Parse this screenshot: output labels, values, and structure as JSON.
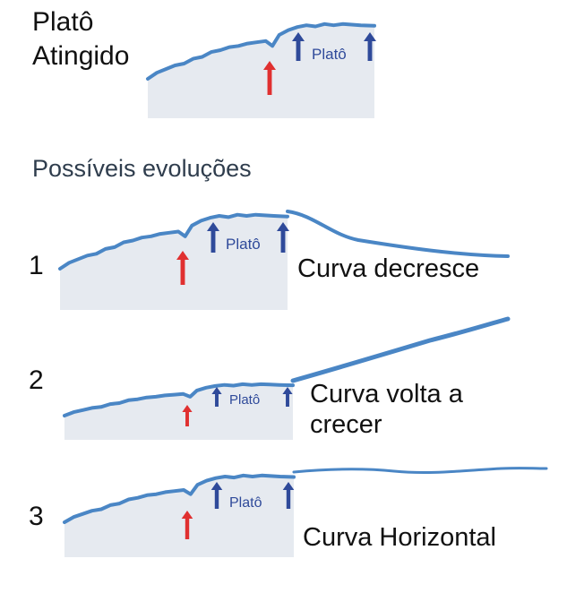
{
  "title": "Platô Atingido",
  "subtitle": "Possíveis evoluções",
  "plateau_label": "Platô",
  "scenarios": [
    {
      "number": "1",
      "caption": "Curva decresce"
    },
    {
      "number": "2",
      "caption": "Curva volta a crecer"
    },
    {
      "number": "3",
      "caption": "Curva Horizontal"
    }
  ],
  "colors": {
    "curve": "#4a86c5",
    "area": "#e6eaf0",
    "plateau_arrow": "#2f4a9a",
    "start_arrow": "#e03030"
  },
  "icons": {
    "start_marker": "red-up-arrow-icon",
    "plateau_marker": "blue-up-arrow-icon"
  }
}
